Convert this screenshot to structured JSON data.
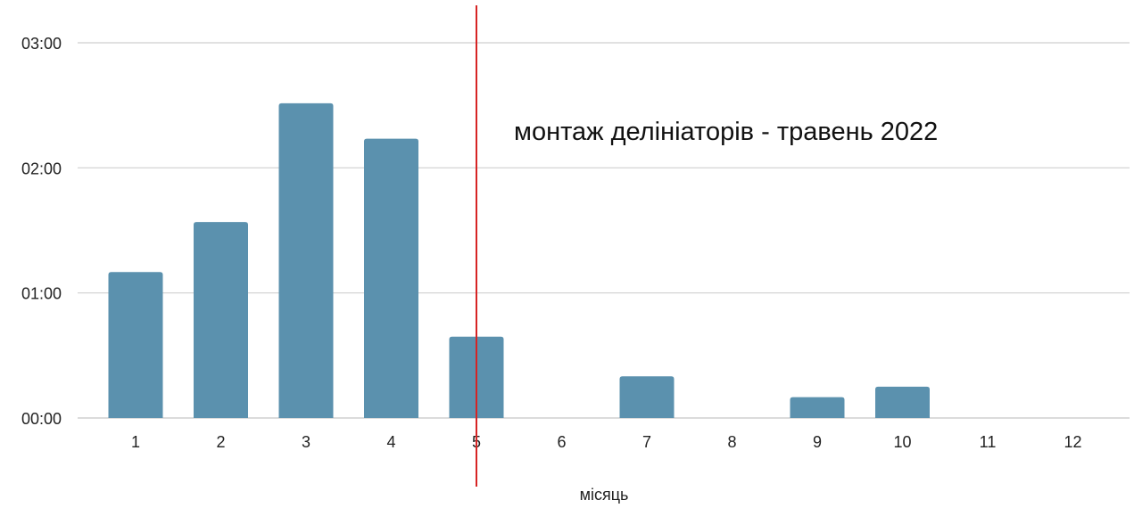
{
  "chart_data": {
    "type": "bar",
    "title": "",
    "xlabel": "місяць",
    "ylabel": "",
    "categories": [
      "1",
      "2",
      "3",
      "4",
      "5",
      "6",
      "7",
      "8",
      "9",
      "10",
      "11",
      "12"
    ],
    "series": [
      {
        "values": [
          70,
          94,
          151,
          134,
          39,
          0,
          20,
          0,
          10,
          15,
          0,
          0
        ]
      }
    ],
    "value_unit": "minutes",
    "yticks": [
      {
        "value": 0,
        "label": "00:00"
      },
      {
        "value": 60,
        "label": "01:00"
      },
      {
        "value": 120,
        "label": "02:00"
      },
      {
        "value": 180,
        "label": "03:00"
      }
    ],
    "ylim": [
      0,
      180
    ],
    "grid": true,
    "legend": "none",
    "bar_color": "#5b91ae",
    "gridline_color": "#cfcfcf",
    "annotation": {
      "text": "монтаж делініаторів - травень 2022",
      "marker_category": "5",
      "marker_color": "#d62424"
    }
  }
}
